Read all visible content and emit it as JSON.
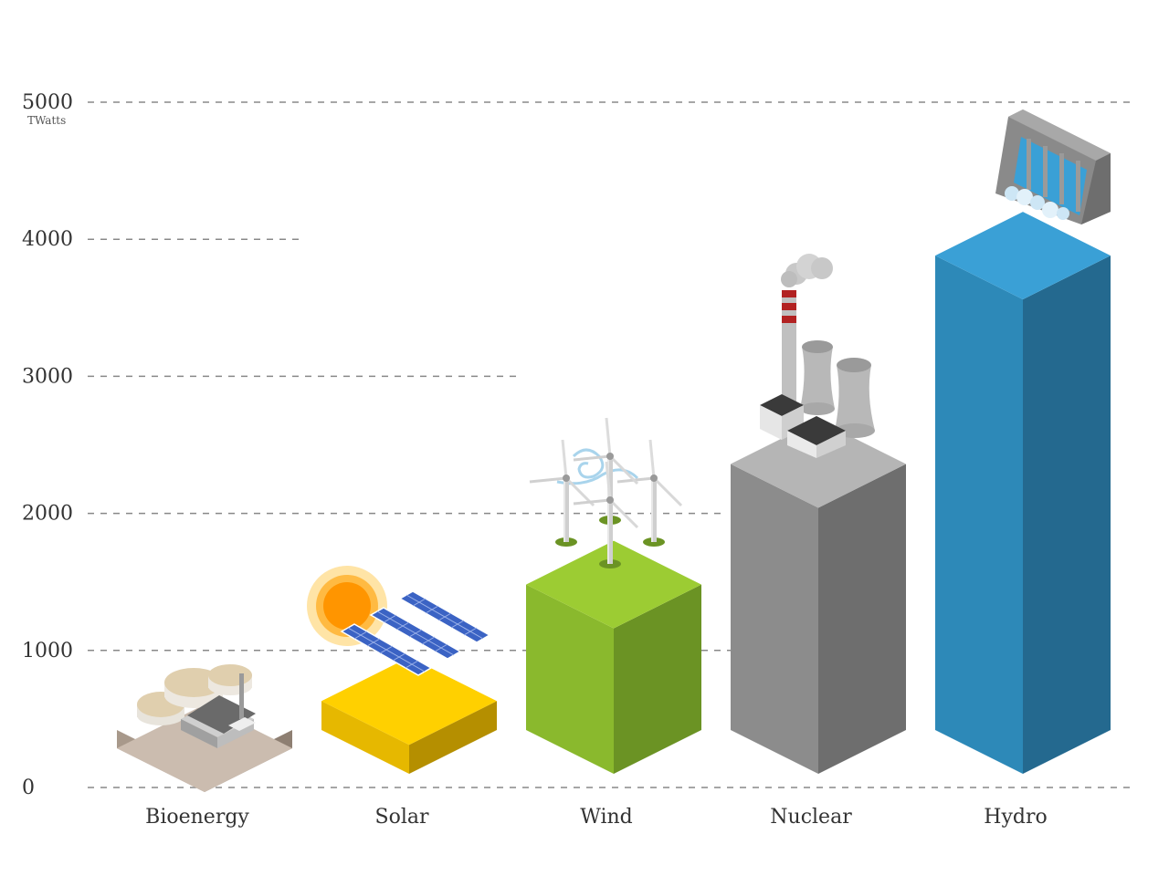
{
  "chart_data": {
    "type": "bar",
    "title": "",
    "xlabel": "",
    "ylabel": "",
    "y_unit": "TWatts",
    "ylim": [
      0,
      5000
    ],
    "y_ticks": [
      0,
      1000,
      2000,
      3000,
      4000,
      5000
    ],
    "grid": true,
    "categories": [
      "Bioenergy",
      "Solar",
      "Wind",
      "Nuclear",
      "Hydro"
    ],
    "values": [
      200,
      950,
      1800,
      2680,
      4200
    ],
    "colors": {
      "Bioenergy": {
        "front": "#a8998b",
        "side": "#8e7f72",
        "top": "#cbbcaf"
      },
      "Solar": {
        "front": "#e6b800",
        "side": "#b58f00",
        "top": "#ffd000"
      },
      "Wind": {
        "front": "#8ab92d",
        "side": "#6b9324",
        "top": "#9ccc33"
      },
      "Nuclear": {
        "front": "#8c8c8c",
        "side": "#6e6e6e",
        "top": "#b5b5b5"
      },
      "Hydro": {
        "front": "#2d89b8",
        "side": "#24698f",
        "top": "#3aa0d6"
      }
    },
    "icons": [
      "biogas-plant-icon",
      "solar-panels-sun-icon",
      "wind-turbines-icon",
      "nuclear-plant-icon",
      "hydro-dam-icon"
    ]
  }
}
